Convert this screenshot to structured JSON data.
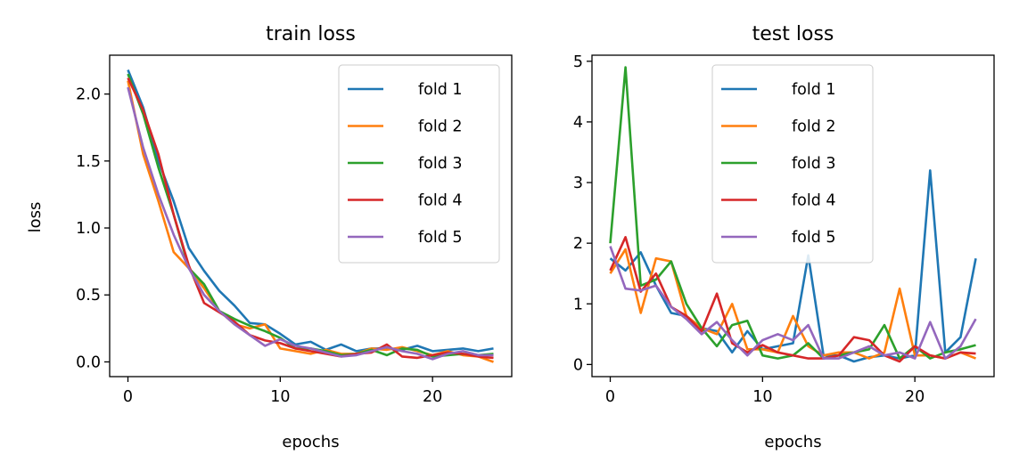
{
  "chart_data": [
    {
      "type": "line",
      "title": "train loss",
      "xlabel": "epochs",
      "ylabel": "loss",
      "xlim": [
        -1.2,
        25.2
      ],
      "ylim": [
        -0.11,
        2.29
      ],
      "xticks": [
        0,
        10,
        20
      ],
      "xtick_labels": [
        "0",
        "10",
        "20"
      ],
      "yticks": [
        0,
        0.5,
        1,
        1.5,
        2
      ],
      "ytick_labels": [
        "0.0",
        "0.5",
        "1.0",
        "1.5",
        "2.0"
      ],
      "legend_position": "top-right",
      "x": [
        0,
        1,
        2,
        3,
        4,
        5,
        6,
        7,
        8,
        9,
        10,
        11,
        12,
        13,
        14,
        15,
        16,
        17,
        18,
        19,
        20,
        21,
        22,
        23,
        24
      ],
      "series": [
        {
          "name": "fold 1",
          "color": "#1f77b4",
          "values": [
            2.18,
            1.9,
            1.5,
            1.2,
            0.85,
            0.68,
            0.53,
            0.42,
            0.29,
            0.28,
            0.21,
            0.13,
            0.15,
            0.09,
            0.13,
            0.08,
            0.1,
            0.1,
            0.09,
            0.12,
            0.08,
            0.09,
            0.1,
            0.08,
            0.1
          ]
        },
        {
          "name": "fold 2",
          "color": "#ff7f0e",
          "values": [
            2.1,
            1.55,
            1.2,
            0.82,
            0.7,
            0.55,
            0.38,
            0.28,
            0.25,
            0.28,
            0.1,
            0.08,
            0.06,
            0.09,
            0.06,
            0.06,
            0.1,
            0.09,
            0.11,
            0.08,
            0.05,
            0.08,
            0.05,
            0.04,
            0.0
          ]
        },
        {
          "name": "fold 3",
          "color": "#2ca02c",
          "values": [
            2.15,
            1.85,
            1.45,
            1.1,
            0.7,
            0.58,
            0.38,
            0.32,
            0.27,
            0.23,
            0.18,
            0.1,
            0.1,
            0.08,
            0.05,
            0.06,
            0.09,
            0.05,
            0.1,
            0.09,
            0.04,
            0.05,
            0.06,
            0.05,
            0.06
          ]
        },
        {
          "name": "fold 4",
          "color": "#d62728",
          "values": [
            2.12,
            1.88,
            1.55,
            1.1,
            0.72,
            0.44,
            0.37,
            0.3,
            0.2,
            0.16,
            0.14,
            0.1,
            0.08,
            0.06,
            0.04,
            0.06,
            0.07,
            0.13,
            0.04,
            0.03,
            0.05,
            0.07,
            0.06,
            0.04,
            0.03
          ]
        },
        {
          "name": "fold 5",
          "color": "#9467bd",
          "values": [
            2.05,
            1.6,
            1.25,
            0.95,
            0.7,
            0.5,
            0.38,
            0.28,
            0.2,
            0.12,
            0.17,
            0.12,
            0.1,
            0.07,
            0.04,
            0.05,
            0.08,
            0.11,
            0.08,
            0.06,
            0.02,
            0.06,
            0.08,
            0.05,
            0.05
          ]
        }
      ]
    },
    {
      "type": "line",
      "title": "test loss",
      "xlabel": "epochs",
      "ylabel": "",
      "xlim": [
        -1.2,
        25.2
      ],
      "ylim": [
        -0.2,
        5.1
      ],
      "xticks": [
        0,
        10,
        20
      ],
      "xtick_labels": [
        "0",
        "10",
        "20"
      ],
      "yticks": [
        0,
        1,
        2,
        3,
        4,
        5
      ],
      "ytick_labels": [
        "0",
        "1",
        "2",
        "3",
        "4",
        "5"
      ],
      "legend_position": "upper-center",
      "x": [
        0,
        1,
        2,
        3,
        4,
        5,
        6,
        7,
        8,
        9,
        10,
        11,
        12,
        13,
        14,
        15,
        16,
        17,
        18,
        19,
        20,
        21,
        22,
        23,
        24
      ],
      "series": [
        {
          "name": "fold 1",
          "color": "#1f77b4",
          "values": [
            1.75,
            1.55,
            1.85,
            1.3,
            0.85,
            0.8,
            0.6,
            0.55,
            0.2,
            0.55,
            0.25,
            0.3,
            0.35,
            1.8,
            0.15,
            0.15,
            0.05,
            0.12,
            0.15,
            0.1,
            0.15,
            3.2,
            0.2,
            0.45,
            1.75
          ]
        },
        {
          "name": "fold 2",
          "color": "#ff7f0e",
          "values": [
            1.5,
            1.9,
            0.85,
            1.75,
            1.7,
            0.8,
            0.6,
            0.5,
            1.0,
            0.25,
            0.25,
            0.2,
            0.8,
            0.3,
            0.15,
            0.2,
            0.2,
            0.1,
            0.2,
            1.25,
            0.15,
            0.15,
            0.1,
            0.2,
            0.1
          ]
        },
        {
          "name": "fold 3",
          "color": "#2ca02c",
          "values": [
            2.0,
            4.9,
            1.3,
            1.4,
            1.7,
            1.0,
            0.6,
            0.3,
            0.65,
            0.72,
            0.15,
            0.1,
            0.15,
            0.35,
            0.1,
            0.15,
            0.2,
            0.25,
            0.65,
            0.1,
            0.3,
            0.1,
            0.2,
            0.25,
            0.32
          ]
        },
        {
          "name": "fold 4",
          "color": "#d62728",
          "values": [
            1.55,
            2.1,
            1.2,
            1.5,
            0.95,
            0.8,
            0.55,
            1.17,
            0.35,
            0.2,
            0.32,
            0.2,
            0.15,
            0.1,
            0.1,
            0.15,
            0.45,
            0.4,
            0.15,
            0.05,
            0.3,
            0.15,
            0.1,
            0.2,
            0.18
          ]
        },
        {
          "name": "fold 5",
          "color": "#9467bd",
          "values": [
            1.95,
            1.25,
            1.22,
            1.3,
            0.95,
            0.75,
            0.5,
            0.7,
            0.4,
            0.15,
            0.4,
            0.5,
            0.4,
            0.65,
            0.1,
            0.1,
            0.2,
            0.3,
            0.15,
            0.2,
            0.1,
            0.7,
            0.1,
            0.3,
            0.75
          ]
        }
      ]
    }
  ]
}
